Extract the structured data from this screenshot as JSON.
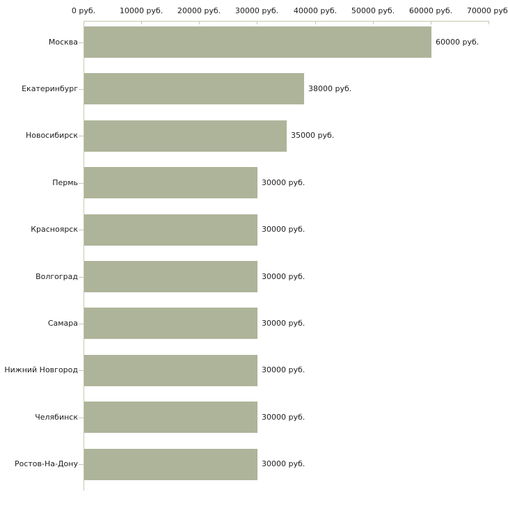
{
  "chart_data": {
    "type": "bar",
    "orientation": "horizontal",
    "title": "",
    "xlabel": "",
    "ylabel": "",
    "xlim": [
      0,
      70000
    ],
    "grid": false,
    "legend": false,
    "x_tick_labels": [
      "0 руб.",
      "10000 руб.",
      "20000 руб.",
      "30000 руб.",
      "40000 руб.",
      "50000 руб.",
      "60000 руб.",
      "70000 руб."
    ],
    "x_tick_values": [
      0,
      10000,
      20000,
      30000,
      40000,
      50000,
      60000,
      70000
    ],
    "categories": [
      "Москва",
      "Екатеринбург",
      "Новосибирск",
      "Пермь",
      "Красноярск",
      "Волгоград",
      "Самара",
      "Нижний Новгород",
      "Челябинск",
      "Ростов-На-Дону"
    ],
    "values": [
      60000,
      38000,
      35000,
      30000,
      30000,
      30000,
      30000,
      30000,
      30000,
      30000
    ],
    "value_labels": [
      "60000 руб.",
      "38000 руб.",
      "35000 руб.",
      "30000 руб.",
      "30000 руб.",
      "30000 руб.",
      "30000 руб.",
      "30000 руб.",
      "30000 руб.",
      "30000 руб."
    ],
    "colors": {
      "bar": "#aeb499",
      "axis": "#c6c6ae",
      "text": "#1c1c1c",
      "background": "#ffffff"
    }
  }
}
